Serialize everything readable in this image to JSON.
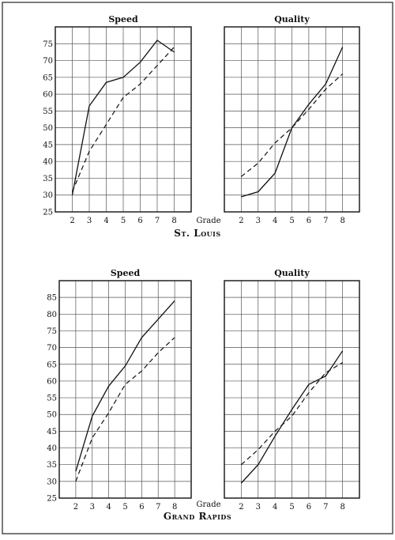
{
  "sections": [
    {
      "label": "St. Louis",
      "grade_label": "Grade",
      "charts": [
        {
          "type": "line",
          "title": "Speed",
          "xlabel": "Grade",
          "ylim": [
            25,
            80
          ],
          "yticks": [
            25,
            30,
            35,
            40,
            45,
            50,
            55,
            60,
            65,
            70,
            75
          ],
          "x": [
            2,
            3,
            4,
            5,
            6,
            7,
            8
          ],
          "series": [
            {
              "style": "solid",
              "values": [
                30,
                56.5,
                63.5,
                65,
                69.5,
                76,
                72.5
              ]
            },
            {
              "style": "dashed",
              "values": [
                31,
                43,
                51,
                59,
                63,
                68.5,
                74
              ]
            }
          ],
          "grid": true
        },
        {
          "type": "line",
          "title": "Quality",
          "xlabel": "Grade",
          "ylim": [
            25,
            80
          ],
          "x": [
            2,
            3,
            4,
            5,
            6,
            7,
            8
          ],
          "series": [
            {
              "style": "solid",
              "values": [
                29.5,
                31,
                36.5,
                50,
                57,
                63,
                74
              ]
            },
            {
              "style": "dashed",
              "values": [
                35.5,
                39.5,
                45.5,
                50,
                55.5,
                61.5,
                66
              ]
            }
          ],
          "grid": true
        }
      ]
    },
    {
      "label": "Grand Rapids",
      "grade_label": "Grade",
      "charts": [
        {
          "type": "line",
          "title": "Speed",
          "xlabel": "Grade",
          "ylim": [
            25,
            90
          ],
          "yticks": [
            25,
            30,
            35,
            40,
            45,
            50,
            55,
            60,
            65,
            70,
            75,
            80,
            85
          ],
          "x": [
            2,
            3,
            4,
            5,
            6,
            7,
            8
          ],
          "series": [
            {
              "style": "solid",
              "values": [
                33,
                49.5,
                58.5,
                64.5,
                73,
                78.5,
                84
              ]
            },
            {
              "style": "dashed",
              "values": [
                30,
                43,
                50.5,
                59,
                63,
                68.5,
                73
              ]
            }
          ],
          "grid": true
        },
        {
          "type": "line",
          "title": "Quality",
          "xlabel": "Grade",
          "ylim": [
            25,
            90
          ],
          "x": [
            2,
            3,
            4,
            5,
            6,
            7,
            8
          ],
          "series": [
            {
              "style": "solid",
              "values": [
                29.5,
                35,
                43.5,
                51.5,
                59,
                61.5,
                69
              ]
            },
            {
              "style": "dashed",
              "values": [
                35,
                39.5,
                45,
                49.5,
                56.5,
                62.5,
                65.5
              ]
            }
          ],
          "grid": true
        }
      ]
    }
  ],
  "chart_data": [
    {
      "type": "line",
      "title": "Speed",
      "xlabel": "Grade",
      "x": [
        2,
        3,
        4,
        5,
        6,
        7,
        8
      ],
      "ylim": [
        25,
        80
      ],
      "series": [
        {
          "values": [
            30,
            56.5,
            63.5,
            65,
            69.5,
            76,
            72.5
          ]
        },
        {
          "values": [
            31,
            43,
            51,
            59,
            63,
            68.5,
            74
          ]
        }
      ]
    },
    {
      "type": "line",
      "title": "Quality",
      "xlabel": "Grade",
      "x": [
        2,
        3,
        4,
        5,
        6,
        7,
        8
      ],
      "ylim": [
        25,
        80
      ],
      "series": [
        {
          "values": [
            29.5,
            31,
            36.5,
            50,
            57,
            63,
            74
          ]
        },
        {
          "values": [
            35.5,
            39.5,
            45.5,
            50,
            55.5,
            61.5,
            66
          ]
        }
      ]
    },
    {
      "type": "line",
      "title": "Speed",
      "xlabel": "Grade",
      "x": [
        2,
        3,
        4,
        5,
        6,
        7,
        8
      ],
      "ylim": [
        25,
        90
      ],
      "series": [
        {
          "values": [
            33,
            49.5,
            58.5,
            64.5,
            73,
            78.5,
            84
          ]
        },
        {
          "values": [
            30,
            43,
            50.5,
            59,
            63,
            68.5,
            73
          ]
        }
      ]
    },
    {
      "type": "line",
      "title": "Quality",
      "xlabel": "Grade",
      "x": [
        2,
        3,
        4,
        5,
        6,
        7,
        8
      ],
      "ylim": [
        25,
        90
      ],
      "series": [
        {
          "values": [
            29.5,
            35,
            43.5,
            51.5,
            59,
            61.5,
            69
          ]
        },
        {
          "values": [
            35,
            39.5,
            45,
            49.5,
            56.5,
            62.5,
            65.5
          ]
        }
      ]
    }
  ]
}
